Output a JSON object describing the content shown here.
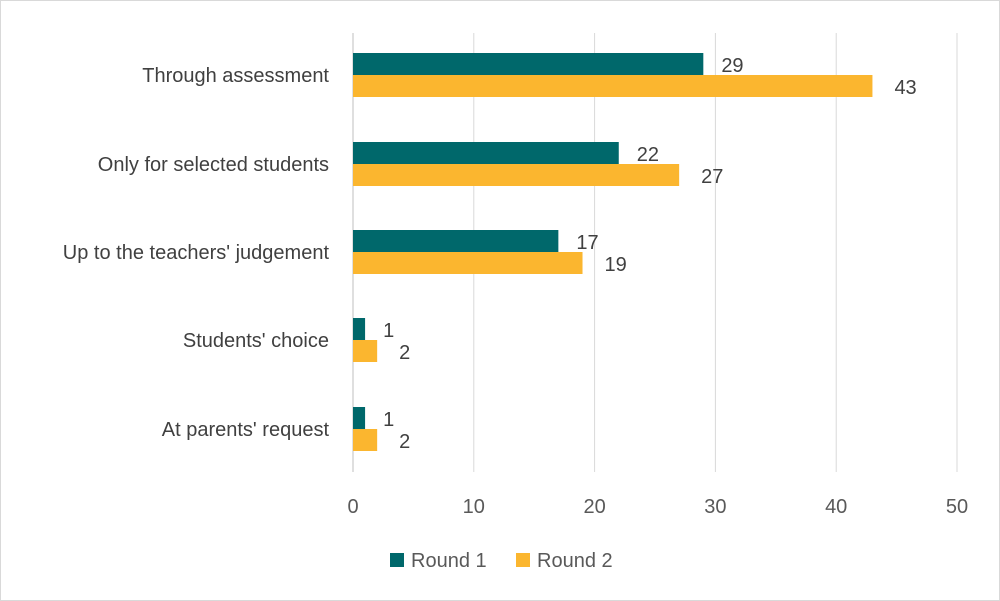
{
  "chart_data": {
    "type": "bar",
    "orientation": "horizontal",
    "categories": [
      "Through assessment",
      "Only for selected students",
      "Up to the teachers' judgement",
      "Students' choice",
      "At parents' request"
    ],
    "series": [
      {
        "name": "Round 1",
        "values": [
          29,
          22,
          17,
          1,
          1
        ],
        "color": "#00686b"
      },
      {
        "name": "Round 2",
        "values": [
          43,
          27,
          19,
          2,
          2
        ],
        "color": "#fbb62f"
      }
    ],
    "xlim": [
      0,
      50
    ],
    "xticks": [
      0,
      10,
      20,
      30,
      40,
      50
    ],
    "grid": true,
    "legend": "bottom"
  }
}
